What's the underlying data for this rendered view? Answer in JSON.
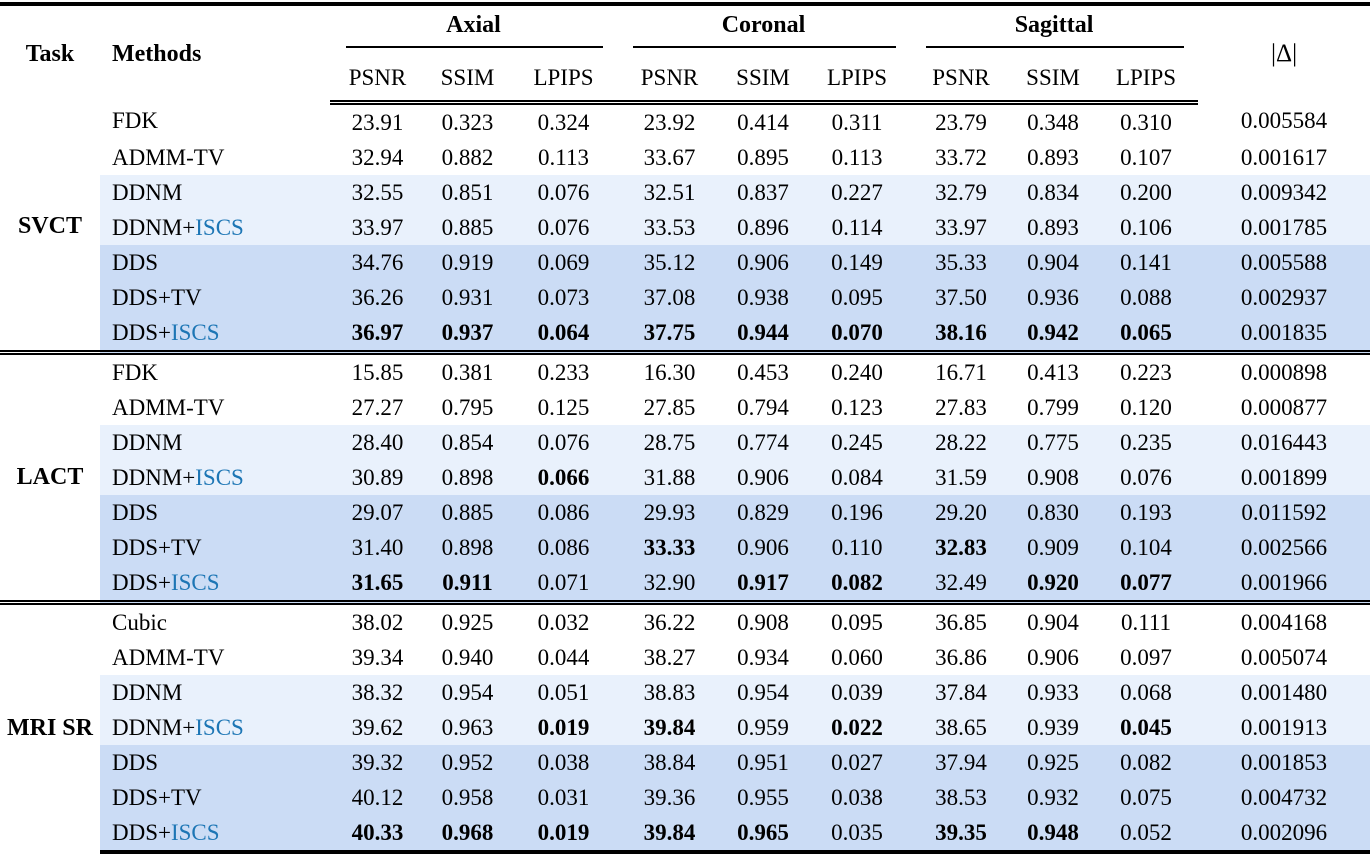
{
  "colors": {
    "iscs_accent": "#1d76b5",
    "band_light": "#e9f1fc",
    "band_dark": "#cbdcf5"
  },
  "header": {
    "task": "Task",
    "methods": "Methods",
    "groups": [
      "Axial",
      "Coronal",
      "Sagittal"
    ],
    "metrics": [
      "PSNR",
      "SSIM",
      "LPIPS"
    ],
    "delta": "|Δ|"
  },
  "chart_data": {
    "type": "table",
    "columns": [
      "Task",
      "Methods",
      "Axial PSNR",
      "Axial SSIM",
      "Axial LPIPS",
      "Coronal PSNR",
      "Coronal SSIM",
      "Coronal LPIPS",
      "Sagittal PSNR",
      "Sagittal SSIM",
      "Sagittal LPIPS",
      "|Δ|"
    ]
  },
  "blocks": [
    {
      "task": "SVCT",
      "rows": [
        {
          "method": "FDK",
          "band": "none",
          "values": [
            "23.91",
            "0.323",
            "0.324",
            "23.92",
            "0.414",
            "0.311",
            "23.79",
            "0.348",
            "0.310"
          ],
          "bold": [
            0,
            0,
            0,
            0,
            0,
            0,
            0,
            0,
            0
          ],
          "delta": "0.005584"
        },
        {
          "method": "ADMM-TV",
          "band": "none",
          "values": [
            "32.94",
            "0.882",
            "0.113",
            "33.67",
            "0.895",
            "0.113",
            "33.72",
            "0.893",
            "0.107"
          ],
          "bold": [
            0,
            0,
            0,
            0,
            0,
            0,
            0,
            0,
            0
          ],
          "delta": "0.001617"
        },
        {
          "method": "DDNM",
          "band": "light",
          "values": [
            "32.55",
            "0.851",
            "0.076",
            "32.51",
            "0.837",
            "0.227",
            "32.79",
            "0.834",
            "0.200"
          ],
          "bold": [
            0,
            0,
            0,
            0,
            0,
            0,
            0,
            0,
            0
          ],
          "delta": "0.009342"
        },
        {
          "method": "DDNM+ISCS",
          "band": "light",
          "values": [
            "33.97",
            "0.885",
            "0.076",
            "33.53",
            "0.896",
            "0.114",
            "33.97",
            "0.893",
            "0.106"
          ],
          "bold": [
            0,
            0,
            0,
            0,
            0,
            0,
            0,
            0,
            0
          ],
          "delta": "0.001785"
        },
        {
          "method": "DDS",
          "band": "dark",
          "values": [
            "34.76",
            "0.919",
            "0.069",
            "35.12",
            "0.906",
            "0.149",
            "35.33",
            "0.904",
            "0.141"
          ],
          "bold": [
            0,
            0,
            0,
            0,
            0,
            0,
            0,
            0,
            0
          ],
          "delta": "0.005588"
        },
        {
          "method": "DDS+TV",
          "band": "dark",
          "values": [
            "36.26",
            "0.931",
            "0.073",
            "37.08",
            "0.938",
            "0.095",
            "37.50",
            "0.936",
            "0.088"
          ],
          "bold": [
            0,
            0,
            0,
            0,
            0,
            0,
            0,
            0,
            0
          ],
          "delta": "0.002937"
        },
        {
          "method": "DDS+ISCS",
          "band": "dark",
          "values": [
            "36.97",
            "0.937",
            "0.064",
            "37.75",
            "0.944",
            "0.070",
            "38.16",
            "0.942",
            "0.065"
          ],
          "bold": [
            1,
            1,
            1,
            1,
            1,
            1,
            1,
            1,
            1
          ],
          "delta": "0.001835"
        }
      ]
    },
    {
      "task": "LACT",
      "rows": [
        {
          "method": "FDK",
          "band": "none",
          "values": [
            "15.85",
            "0.381",
            "0.233",
            "16.30",
            "0.453",
            "0.240",
            "16.71",
            "0.413",
            "0.223"
          ],
          "bold": [
            0,
            0,
            0,
            0,
            0,
            0,
            0,
            0,
            0
          ],
          "delta": "0.000898"
        },
        {
          "method": "ADMM-TV",
          "band": "none",
          "values": [
            "27.27",
            "0.795",
            "0.125",
            "27.85",
            "0.794",
            "0.123",
            "27.83",
            "0.799",
            "0.120"
          ],
          "bold": [
            0,
            0,
            0,
            0,
            0,
            0,
            0,
            0,
            0
          ],
          "delta": "0.000877"
        },
        {
          "method": "DDNM",
          "band": "light",
          "values": [
            "28.40",
            "0.854",
            "0.076",
            "28.75",
            "0.774",
            "0.245",
            "28.22",
            "0.775",
            "0.235"
          ],
          "bold": [
            0,
            0,
            0,
            0,
            0,
            0,
            0,
            0,
            0
          ],
          "delta": "0.016443"
        },
        {
          "method": "DDNM+ISCS",
          "band": "light",
          "values": [
            "30.89",
            "0.898",
            "0.066",
            "31.88",
            "0.906",
            "0.084",
            "31.59",
            "0.908",
            "0.076"
          ],
          "bold": [
            0,
            0,
            1,
            0,
            0,
            0,
            0,
            0,
            0
          ],
          "delta": "0.001899"
        },
        {
          "method": "DDS",
          "band": "dark",
          "values": [
            "29.07",
            "0.885",
            "0.086",
            "29.93",
            "0.829",
            "0.196",
            "29.20",
            "0.830",
            "0.193"
          ],
          "bold": [
            0,
            0,
            0,
            0,
            0,
            0,
            0,
            0,
            0
          ],
          "delta": "0.011592"
        },
        {
          "method": "DDS+TV",
          "band": "dark",
          "values": [
            "31.40",
            "0.898",
            "0.086",
            "33.33",
            "0.906",
            "0.110",
            "32.83",
            "0.909",
            "0.104"
          ],
          "bold": [
            0,
            0,
            0,
            1,
            0,
            0,
            1,
            0,
            0
          ],
          "delta": "0.002566"
        },
        {
          "method": "DDS+ISCS",
          "band": "dark",
          "values": [
            "31.65",
            "0.911",
            "0.071",
            "32.90",
            "0.917",
            "0.082",
            "32.49",
            "0.920",
            "0.077"
          ],
          "bold": [
            1,
            1,
            0,
            0,
            1,
            1,
            0,
            1,
            1
          ],
          "delta": "0.001966"
        }
      ]
    },
    {
      "task": "MRI SR",
      "rows": [
        {
          "method": "Cubic",
          "band": "none",
          "values": [
            "38.02",
            "0.925",
            "0.032",
            "36.22",
            "0.908",
            "0.095",
            "36.85",
            "0.904",
            "0.111"
          ],
          "bold": [
            0,
            0,
            0,
            0,
            0,
            0,
            0,
            0,
            0
          ],
          "delta": "0.004168"
        },
        {
          "method": "ADMM-TV",
          "band": "none",
          "values": [
            "39.34",
            "0.940",
            "0.044",
            "38.27",
            "0.934",
            "0.060",
            "36.86",
            "0.906",
            "0.097"
          ],
          "bold": [
            0,
            0,
            0,
            0,
            0,
            0,
            0,
            0,
            0
          ],
          "delta": "0.005074"
        },
        {
          "method": "DDNM",
          "band": "light",
          "values": [
            "38.32",
            "0.954",
            "0.051",
            "38.83",
            "0.954",
            "0.039",
            "37.84",
            "0.933",
            "0.068"
          ],
          "bold": [
            0,
            0,
            0,
            0,
            0,
            0,
            0,
            0,
            0
          ],
          "delta": "0.001480"
        },
        {
          "method": "DDNM+ISCS",
          "band": "light",
          "values": [
            "39.62",
            "0.963",
            "0.019",
            "39.84",
            "0.959",
            "0.022",
            "38.65",
            "0.939",
            "0.045"
          ],
          "bold": [
            0,
            0,
            1,
            1,
            0,
            1,
            0,
            0,
            1
          ],
          "delta": "0.001913"
        },
        {
          "method": "DDS",
          "band": "dark",
          "values": [
            "39.32",
            "0.952",
            "0.038",
            "38.84",
            "0.951",
            "0.027",
            "37.94",
            "0.925",
            "0.082"
          ],
          "bold": [
            0,
            0,
            0,
            0,
            0,
            0,
            0,
            0,
            0
          ],
          "delta": "0.001853"
        },
        {
          "method": "DDS+TV",
          "band": "dark",
          "values": [
            "40.12",
            "0.958",
            "0.031",
            "39.36",
            "0.955",
            "0.038",
            "38.53",
            "0.932",
            "0.075"
          ],
          "bold": [
            0,
            0,
            0,
            0,
            0,
            0,
            0,
            0,
            0
          ],
          "delta": "0.004732"
        },
        {
          "method": "DDS+ISCS",
          "band": "dark",
          "values": [
            "40.33",
            "0.968",
            "0.019",
            "39.84",
            "0.965",
            "0.035",
            "39.35",
            "0.948",
            "0.052"
          ],
          "bold": [
            1,
            1,
            1,
            1,
            1,
            0,
            1,
            1,
            0
          ],
          "delta": "0.002096"
        }
      ]
    }
  ]
}
